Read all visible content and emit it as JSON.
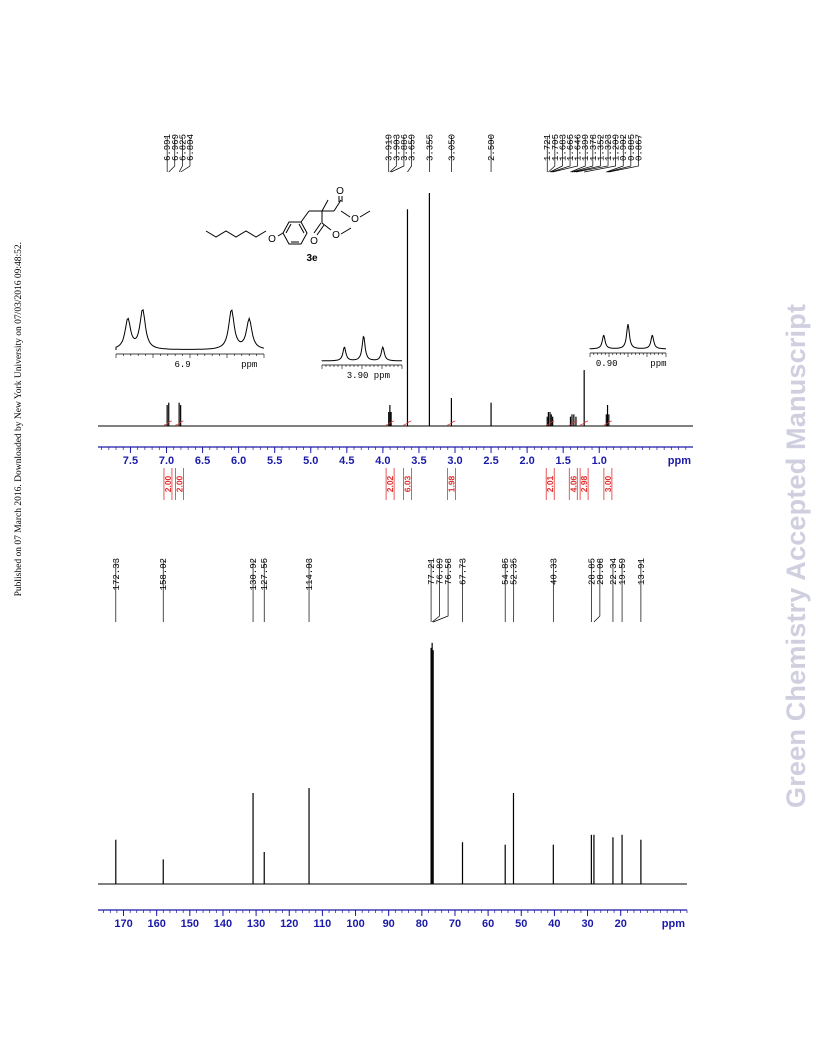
{
  "side_note": "Published on 07 March 2016. Downloaded by New York University on 07/03/2016 09:48:52.",
  "journal_watermark": "Green Chemistry Accepted Manuscript",
  "colors": {
    "axis": "#1a1aa8",
    "integral": "#e03030",
    "trace": "#000000"
  },
  "compound_label": "3e",
  "chart_data": [
    {
      "type": "line",
      "name": "1H NMR",
      "xlabel": "ppm",
      "xlim": [
        7.95,
        -0.3
      ],
      "ticks": [
        7.5,
        7.0,
        6.5,
        6.0,
        5.5,
        5.0,
        4.5,
        4.0,
        3.5,
        3.0,
        2.5,
        2.0,
        1.5,
        1.0
      ],
      "tick_labels": [
        "7.5",
        "7.0",
        "6.5",
        "6.0",
        "5.5",
        "5.0",
        "4.5",
        "4.0",
        "3.5",
        "3.0",
        "2.5",
        "2.0",
        "1.5",
        "1.0"
      ],
      "peak_labels": [
        "6.991",
        "6.969",
        "6.825",
        "6.804",
        "3.919",
        "3.903",
        "3.886",
        "3.659",
        "3.355",
        "3.050",
        "2.500",
        "1.721",
        "1.705",
        "1.683",
        "1.665",
        "1.646",
        "1.399",
        "1.378",
        "1.352",
        "1.323",
        "1.209",
        "0.902",
        "0.885",
        "0.867"
      ],
      "peaks": [
        {
          "ppm": 6.991,
          "h": 0.09
        },
        {
          "ppm": 6.969,
          "h": 0.1
        },
        {
          "ppm": 6.825,
          "h": 0.1
        },
        {
          "ppm": 6.804,
          "h": 0.09
        },
        {
          "ppm": 3.919,
          "h": 0.06
        },
        {
          "ppm": 3.903,
          "h": 0.09
        },
        {
          "ppm": 3.886,
          "h": 0.06
        },
        {
          "ppm": 3.659,
          "h": 0.93
        },
        {
          "ppm": 3.355,
          "h": 1.0
        },
        {
          "ppm": 3.05,
          "h": 0.12
        },
        {
          "ppm": 2.5,
          "h": 0.1
        },
        {
          "ppm": 1.721,
          "h": 0.04
        },
        {
          "ppm": 1.705,
          "h": 0.06
        },
        {
          "ppm": 1.683,
          "h": 0.06
        },
        {
          "ppm": 1.665,
          "h": 0.05
        },
        {
          "ppm": 1.646,
          "h": 0.04
        },
        {
          "ppm": 1.399,
          "h": 0.04
        },
        {
          "ppm": 1.378,
          "h": 0.05
        },
        {
          "ppm": 1.352,
          "h": 0.05
        },
        {
          "ppm": 1.323,
          "h": 0.04
        },
        {
          "ppm": 1.209,
          "h": 0.24
        },
        {
          "ppm": 0.902,
          "h": 0.05
        },
        {
          "ppm": 0.885,
          "h": 0.09
        },
        {
          "ppm": 0.867,
          "h": 0.05
        }
      ],
      "integrals": [
        {
          "ppm": 6.98,
          "value": "2.00"
        },
        {
          "ppm": 6.82,
          "value": "2.00"
        },
        {
          "ppm": 3.9,
          "value": "2.02"
        },
        {
          "ppm": 3.66,
          "value": "6.03"
        },
        {
          "ppm": 3.05,
          "value": "1.98"
        },
        {
          "ppm": 1.68,
          "value": "2.01"
        },
        {
          "ppm": 1.36,
          "value": "4.06"
        },
        {
          "ppm": 1.21,
          "value": "2.98"
        },
        {
          "ppm": 0.88,
          "value": "3.00"
        }
      ],
      "insets": [
        {
          "tick_label": "6.9",
          "unit": "ppm"
        },
        {
          "tick_label": "3.90 ppm",
          "unit": ""
        },
        {
          "tick_label": "0.90",
          "unit": "ppm"
        }
      ]
    },
    {
      "type": "line",
      "name": "13C NMR",
      "xlabel": "ppm",
      "xlim": [
        177.7,
        0.0
      ],
      "ticks": [
        170,
        160,
        150,
        140,
        130,
        120,
        110,
        100,
        90,
        80,
        70,
        60,
        50,
        40,
        30,
        20
      ],
      "tick_labels": [
        "170",
        "160",
        "150",
        "140",
        "130",
        "120",
        "110",
        "100",
        "90",
        "80",
        "70",
        "60",
        "50",
        "40",
        "30",
        "20"
      ],
      "peak_labels": [
        "172.33",
        "158.02",
        "130.92",
        "127.55",
        "114.03",
        "77.21",
        "76.89",
        "76.58",
        "67.73",
        "54.85",
        "52.35",
        "40.33",
        "28.85",
        "28.08",
        "22.34",
        "19.59",
        "13.91"
      ],
      "peaks": [
        {
          "ppm": 172.33,
          "h": 0.18
        },
        {
          "ppm": 158.02,
          "h": 0.1
        },
        {
          "ppm": 130.92,
          "h": 0.37
        },
        {
          "ppm": 127.55,
          "h": 0.13
        },
        {
          "ppm": 114.03,
          "h": 0.39
        },
        {
          "ppm": 77.21,
          "h": 0.96
        },
        {
          "ppm": 76.89,
          "h": 0.98
        },
        {
          "ppm": 76.58,
          "h": 0.95
        },
        {
          "ppm": 67.73,
          "h": 0.17
        },
        {
          "ppm": 54.85,
          "h": 0.16
        },
        {
          "ppm": 52.35,
          "h": 0.37
        },
        {
          "ppm": 40.33,
          "h": 0.16
        },
        {
          "ppm": 28.85,
          "h": 0.2
        },
        {
          "ppm": 28.08,
          "h": 0.2
        },
        {
          "ppm": 22.34,
          "h": 0.19
        },
        {
          "ppm": 19.59,
          "h": 0.2
        },
        {
          "ppm": 13.91,
          "h": 0.18
        }
      ]
    }
  ]
}
